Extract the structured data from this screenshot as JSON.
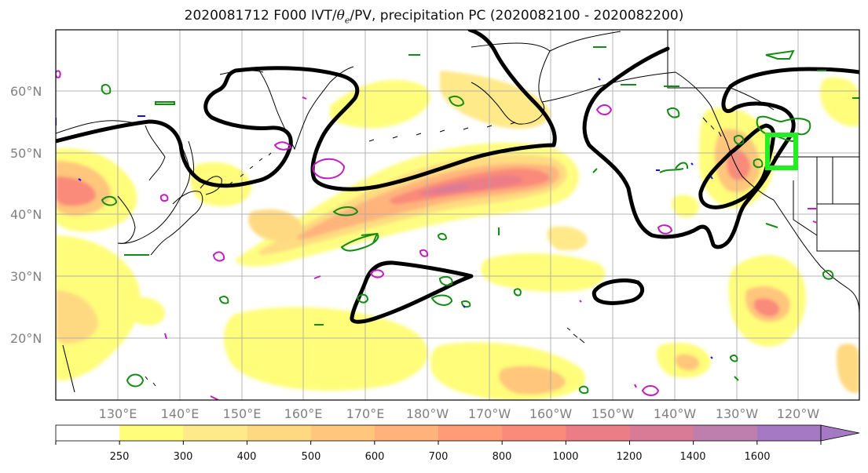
{
  "title": {
    "prefix": "2020081712 F000 IVT/",
    "theta": "θ",
    "theta_sub": "e",
    "suffix": "/PV, precipitation PC (2020082100 - 2020082200)"
  },
  "map": {
    "lat_labels": [
      "60°N",
      "50°N",
      "40°N",
      "30°N",
      "20°N"
    ],
    "lon_labels": [
      "130°E",
      "140°E",
      "150°E",
      "160°E",
      "170°E",
      "180°W",
      "170°W",
      "160°W",
      "150°W",
      "140°W",
      "130°W",
      "120°W"
    ],
    "grid": true,
    "fill_colors": {
      "c250": "#fffd7a",
      "c300": "#ffe989",
      "c400": "#ffd982",
      "c500": "#ffc67c",
      "c600": "#ffb27a",
      "c700": "#ff9b76",
      "c800": "#fa8a7a",
      "c1000": "#ec7c86",
      "c1200": "#d97b97",
      "c1400": "#bf7fae",
      "c1600": "#a679c4"
    },
    "contour_colors": {
      "pv": "#000000",
      "theta_green": "#128c12",
      "theta_magenta": "#c21dc2",
      "blue": "#1010ee",
      "highlight": "#22ee22"
    }
  },
  "colorbar": {
    "ticks": [
      "250",
      "300",
      "400",
      "500",
      "600",
      "700",
      "800",
      "1000",
      "1200",
      "1400",
      "1600"
    ],
    "colors": [
      "#ffffff",
      "#fffd7a",
      "#ffe989",
      "#ffd982",
      "#ffc67c",
      "#ffb27a",
      "#ff9b76",
      "#fa8a7a",
      "#ec7c86",
      "#d97b97",
      "#bf7fae",
      "#a679c4"
    ],
    "extend": "max"
  }
}
